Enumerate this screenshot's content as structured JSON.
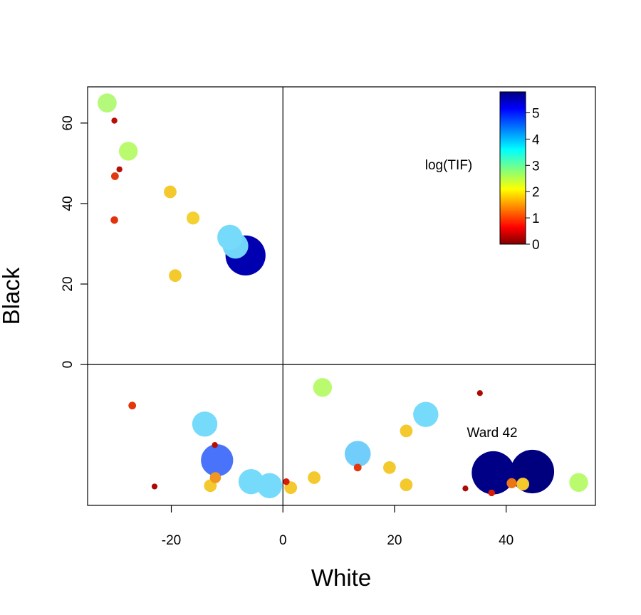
{
  "chart_data": {
    "type": "scatter",
    "title": "",
    "xlabel": "White",
    "ylabel": "Black",
    "xlim": [
      -35,
      56
    ],
    "ylim": [
      -35,
      69
    ],
    "xticks": [
      -20,
      0,
      20,
      40
    ],
    "yticks": [
      0,
      20,
      40,
      60
    ],
    "xtick_labels": [
      "-20",
      "0",
      "20",
      "40"
    ],
    "ytick_labels": [
      "0",
      "20",
      "40",
      "60"
    ],
    "reference_lines": {
      "x": 0,
      "y": 0
    },
    "grid": false,
    "colorbar": {
      "title": "log(TIF)",
      "min": 0,
      "max": 5.8,
      "ticks": [
        0,
        1,
        2,
        3,
        4,
        5
      ],
      "tick_labels": [
        "0",
        "1",
        "2",
        "3",
        "4",
        "5"
      ],
      "colormap": "jet",
      "placement": "top-right"
    },
    "size_encoding": "log(TIF)",
    "annotations": [
      {
        "text": "Ward 42",
        "x": 37.5,
        "y": -18
      }
    ],
    "points": [
      {
        "x": -31.5,
        "y": 65,
        "v": 3.0
      },
      {
        "x": -30.2,
        "y": 60.6,
        "v": 0.3
      },
      {
        "x": -27.7,
        "y": 53,
        "v": 2.95
      },
      {
        "x": -29.3,
        "y": 48.5,
        "v": 0.3
      },
      {
        "x": -30.1,
        "y": 46.8,
        "v": 0.9
      },
      {
        "x": -20.2,
        "y": 42.9,
        "v": 2.0
      },
      {
        "x": -16.1,
        "y": 36.4,
        "v": 2.05
      },
      {
        "x": -30.2,
        "y": 35.9,
        "v": 0.85
      },
      {
        "x": -9.5,
        "y": 31.6,
        "v": 3.8
      },
      {
        "x": -8.5,
        "y": 29.5,
        "v": 3.85
      },
      {
        "x": -6.7,
        "y": 27.1,
        "v": 5.4
      },
      {
        "x": -19.3,
        "y": 22.1,
        "v": 2.0
      },
      {
        "x": 7.1,
        "y": -5.7,
        "v": 2.95
      },
      {
        "x": 35.3,
        "y": -7.1,
        "v": 0.2
      },
      {
        "x": -27.0,
        "y": -10.2,
        "v": 0.9
      },
      {
        "x": 25.6,
        "y": -12.4,
        "v": 3.8
      },
      {
        "x": -14.0,
        "y": -14.8,
        "v": 3.8
      },
      {
        "x": 22.1,
        "y": -16.5,
        "v": 2.0
      },
      {
        "x": -12.2,
        "y": -20.0,
        "v": 0.3
      },
      {
        "x": 13.4,
        "y": -22.2,
        "v": 3.9
      },
      {
        "x": -11.8,
        "y": -23.8,
        "v": 4.6
      },
      {
        "x": 13.4,
        "y": -25.6,
        "v": 0.9
      },
      {
        "x": 19.1,
        "y": -25.6,
        "v": 2.0
      },
      {
        "x": 44.7,
        "y": -26.6,
        "v": 5.75
      },
      {
        "x": 37.7,
        "y": -26.9,
        "v": 5.7
      },
      {
        "x": -12.1,
        "y": -28.1,
        "v": 1.7
      },
      {
        "x": 5.6,
        "y": -28.1,
        "v": 2.0
      },
      {
        "x": -5.7,
        "y": -29.1,
        "v": 3.8
      },
      {
        "x": 0.6,
        "y": -29.1,
        "v": 0.6
      },
      {
        "x": 53.0,
        "y": -29.3,
        "v": 2.95
      },
      {
        "x": 41.0,
        "y": -29.5,
        "v": 1.5
      },
      {
        "x": 43.0,
        "y": -29.7,
        "v": 2.0
      },
      {
        "x": 22.1,
        "y": -29.9,
        "v": 2.0
      },
      {
        "x": -13.0,
        "y": -30.1,
        "v": 2.0
      },
      {
        "x": -2.4,
        "y": -30.1,
        "v": 3.8
      },
      {
        "x": 1.4,
        "y": -30.6,
        "v": 2.0
      },
      {
        "x": -23.0,
        "y": -30.3,
        "v": 0.2
      },
      {
        "x": 32.7,
        "y": -30.8,
        "v": 0.2
      },
      {
        "x": 37.4,
        "y": -31.9,
        "v": 0.6
      }
    ]
  }
}
